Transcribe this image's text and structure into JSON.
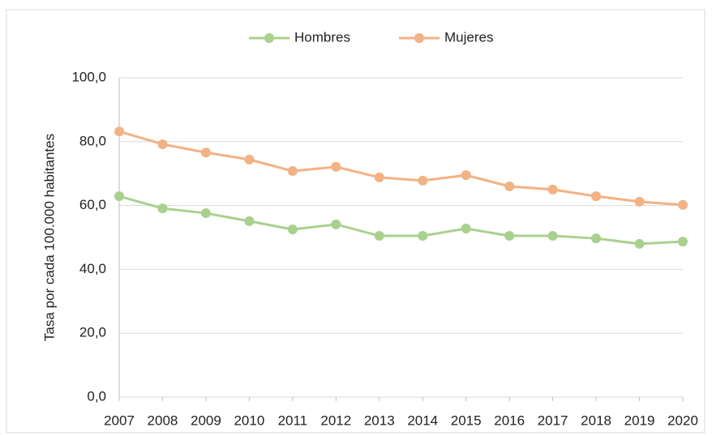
{
  "chart_data": {
    "type": "line",
    "y_axis_label": "Tasa por cada 100.000 habitantes",
    "categories": [
      "2007",
      "2008",
      "2009",
      "2010",
      "2011",
      "2012",
      "2013",
      "2014",
      "2015",
      "2016",
      "2017",
      "2018",
      "2019",
      "2020"
    ],
    "series": [
      {
        "name": "Hombres",
        "color": "#a9d18e",
        "values": [
          62.9,
          59.1,
          57.6,
          55.1,
          52.5,
          54.1,
          50.5,
          50.5,
          52.8,
          50.5,
          50.5,
          49.7,
          48.0,
          48.7
        ]
      },
      {
        "name": "Mujeres",
        "color": "#f4b183",
        "values": [
          83.2,
          79.2,
          76.6,
          74.4,
          70.8,
          72.1,
          68.8,
          67.8,
          69.5,
          66.0,
          65.0,
          62.9,
          61.2,
          60.2
        ]
      }
    ],
    "ylim": [
      0,
      100
    ],
    "yticks": [
      {
        "value": 0,
        "label": "0,0"
      },
      {
        "value": 20,
        "label": "20,0"
      },
      {
        "value": 40,
        "label": "40,0"
      },
      {
        "value": 60,
        "label": "60,0"
      },
      {
        "value": 80,
        "label": "80,0"
      },
      {
        "value": 100,
        "label": "100,0"
      }
    ],
    "grid": true,
    "legend": "top"
  }
}
